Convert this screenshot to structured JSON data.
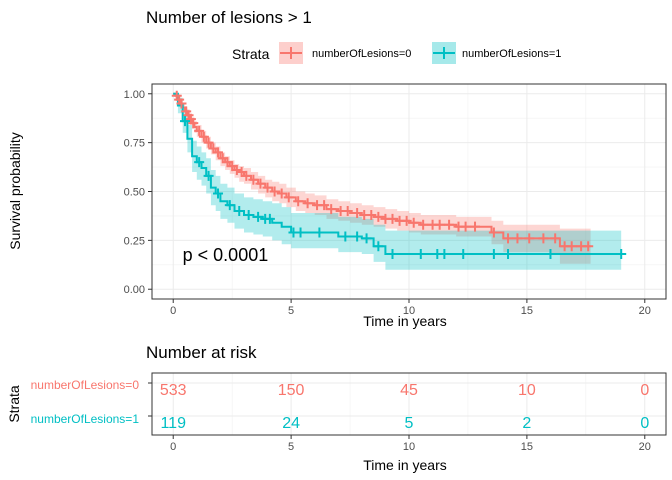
{
  "chart_data": [
    {
      "type": "line",
      "subtype": "kaplan-meier",
      "title": "Number of lesions > 1",
      "xlabel": "Time in years",
      "ylabel": "Survival probability",
      "xlim": [
        -0.9,
        20.9
      ],
      "ylim": [
        -0.05,
        1.05
      ],
      "x_ticks": [
        0,
        5,
        10,
        15,
        20
      ],
      "y_ticks": [
        0.0,
        0.25,
        0.5,
        0.75,
        1.0
      ],
      "y_tick_labels": [
        "0.00",
        "0.25",
        "0.50",
        "0.75",
        "1.00"
      ],
      "grid": true,
      "legend": {
        "title": "Strata",
        "placement": "top"
      },
      "annotation": "p < 0.0001",
      "annotation_pos": {
        "x": 0.4,
        "y": 0.175
      },
      "series": [
        {
          "name": "numberOfLesions=0",
          "color": "#F8766D",
          "band_color": "#F8766D",
          "x": [
            0,
            0.1,
            0.2,
            0.3,
            0.4,
            0.5,
            0.6,
            0.7,
            0.8,
            0.9,
            1.0,
            1.2,
            1.4,
            1.6,
            1.8,
            2.0,
            2.2,
            2.4,
            2.6,
            2.8,
            3.0,
            3.3,
            3.6,
            3.9,
            4.2,
            4.5,
            4.8,
            5.2,
            5.6,
            6.0,
            6.5,
            7.0,
            7.5,
            8.0,
            8.5,
            9.0,
            9.5,
            10.0,
            10.5,
            11.0,
            11.5,
            12.0,
            12.5,
            13.0,
            13.5,
            14.0,
            14.5,
            15.0,
            15.5,
            16.0,
            16.4,
            16.8,
            17.2,
            17.7
          ],
          "y": [
            1.0,
            0.99,
            0.97,
            0.95,
            0.93,
            0.91,
            0.89,
            0.87,
            0.85,
            0.83,
            0.81,
            0.78,
            0.75,
            0.72,
            0.7,
            0.67,
            0.65,
            0.63,
            0.61,
            0.6,
            0.58,
            0.56,
            0.54,
            0.52,
            0.5,
            0.49,
            0.47,
            0.45,
            0.44,
            0.43,
            0.41,
            0.4,
            0.39,
            0.38,
            0.37,
            0.36,
            0.35,
            0.34,
            0.33,
            0.33,
            0.33,
            0.32,
            0.32,
            0.32,
            0.29,
            0.26,
            0.26,
            0.26,
            0.26,
            0.26,
            0.22,
            0.22,
            0.22,
            0.22
          ],
          "lower": [
            1.0,
            0.98,
            0.96,
            0.93,
            0.91,
            0.89,
            0.86,
            0.84,
            0.82,
            0.8,
            0.78,
            0.75,
            0.72,
            0.69,
            0.66,
            0.63,
            0.61,
            0.59,
            0.57,
            0.55,
            0.54,
            0.51,
            0.49,
            0.47,
            0.45,
            0.44,
            0.42,
            0.4,
            0.39,
            0.38,
            0.36,
            0.35,
            0.34,
            0.33,
            0.32,
            0.31,
            0.3,
            0.29,
            0.28,
            0.28,
            0.28,
            0.27,
            0.27,
            0.27,
            0.23,
            0.19,
            0.19,
            0.19,
            0.19,
            0.18,
            0.13,
            0.13,
            0.13,
            0.13
          ],
          "upper": [
            1.0,
            1.0,
            0.99,
            0.97,
            0.95,
            0.93,
            0.92,
            0.9,
            0.88,
            0.86,
            0.84,
            0.81,
            0.78,
            0.75,
            0.73,
            0.7,
            0.68,
            0.66,
            0.64,
            0.63,
            0.62,
            0.6,
            0.58,
            0.56,
            0.55,
            0.54,
            0.52,
            0.5,
            0.49,
            0.48,
            0.46,
            0.45,
            0.44,
            0.43,
            0.42,
            0.41,
            0.4,
            0.39,
            0.38,
            0.38,
            0.38,
            0.37,
            0.37,
            0.37,
            0.35,
            0.33,
            0.33,
            0.33,
            0.33,
            0.33,
            0.31,
            0.31,
            0.31,
            0.31
          ],
          "censor_x": [
            0.15,
            0.25,
            0.35,
            0.55,
            0.65,
            0.75,
            0.85,
            1.1,
            1.3,
            1.5,
            1.7,
            1.9,
            2.1,
            2.3,
            2.5,
            2.7,
            2.9,
            3.1,
            3.4,
            3.7,
            4.0,
            4.3,
            4.6,
            4.9,
            5.3,
            5.7,
            6.1,
            6.4,
            6.7,
            7.1,
            7.4,
            7.8,
            8.1,
            8.4,
            8.7,
            9.0,
            9.3,
            9.6,
            9.9,
            10.2,
            10.6,
            11.0,
            11.3,
            11.7,
            12.1,
            12.4,
            12.8,
            13.6,
            14.2,
            14.6,
            15.1,
            15.7,
            16.2,
            16.6,
            16.9,
            17.3,
            17.6
          ],
          "at_risk": [
            533,
            150,
            45,
            10,
            0
          ]
        },
        {
          "name": "numberOfLesions=1",
          "color": "#00BFC4",
          "band_color": "#00BFC4",
          "x": [
            0,
            0.2,
            0.4,
            0.6,
            0.8,
            1.0,
            1.2,
            1.4,
            1.6,
            1.8,
            2.0,
            2.3,
            2.6,
            3.0,
            3.4,
            3.8,
            4.2,
            4.6,
            5.0,
            5.5,
            6.0,
            6.5,
            7.0,
            7.5,
            8.0,
            8.5,
            9.0,
            9.5,
            10.0,
            11.0,
            12.0,
            13.0,
            14.0,
            15.0,
            16.0,
            17.0,
            18.0,
            19.0
          ],
          "y": [
            1.0,
            0.94,
            0.86,
            0.77,
            0.68,
            0.65,
            0.62,
            0.58,
            0.52,
            0.49,
            0.45,
            0.43,
            0.4,
            0.38,
            0.37,
            0.36,
            0.34,
            0.32,
            0.29,
            0.29,
            0.29,
            0.29,
            0.27,
            0.27,
            0.26,
            0.22,
            0.18,
            0.18,
            0.18,
            0.18,
            0.18,
            0.18,
            0.18,
            0.18,
            0.18,
            0.18,
            0.18,
            0.18
          ],
          "lower": [
            1.0,
            0.9,
            0.8,
            0.7,
            0.6,
            0.56,
            0.53,
            0.49,
            0.43,
            0.4,
            0.36,
            0.34,
            0.31,
            0.29,
            0.28,
            0.27,
            0.25,
            0.23,
            0.21,
            0.21,
            0.21,
            0.21,
            0.19,
            0.19,
            0.18,
            0.14,
            0.1,
            0.1,
            0.1,
            0.1,
            0.1,
            0.1,
            0.1,
            0.1,
            0.1,
            0.1,
            0.1,
            0.1
          ],
          "upper": [
            1.0,
            0.98,
            0.92,
            0.84,
            0.76,
            0.73,
            0.7,
            0.67,
            0.61,
            0.58,
            0.54,
            0.52,
            0.49,
            0.47,
            0.46,
            0.45,
            0.44,
            0.42,
            0.39,
            0.39,
            0.39,
            0.39,
            0.37,
            0.37,
            0.36,
            0.33,
            0.3,
            0.3,
            0.3,
            0.3,
            0.3,
            0.3,
            0.3,
            0.3,
            0.3,
            0.3,
            0.3,
            0.3
          ],
          "censor_x": [
            0.5,
            1.1,
            1.5,
            1.9,
            2.4,
            2.8,
            3.2,
            3.6,
            3.9,
            4.1,
            5.1,
            5.4,
            6.2,
            7.3,
            7.8,
            8.2,
            8.7,
            9.3,
            10.5,
            11.2,
            11.5,
            12.3,
            13.6,
            14.2,
            16.0,
            19.0
          ],
          "at_risk": [
            119,
            24,
            5,
            2,
            0
          ]
        }
      ]
    },
    {
      "type": "table",
      "title": "Number at risk",
      "xlabel": "Time in years",
      "ylabel": "Strata",
      "x_ticks": [
        0,
        5,
        10,
        15,
        20
      ],
      "rows": [
        {
          "label": "numberOfLesions=0",
          "color": "#F8766D",
          "values": [
            "533",
            "150",
            "45",
            "10",
            "0"
          ]
        },
        {
          "label": "numberOfLesions=1",
          "color": "#00BFC4",
          "values": [
            "119",
            "24",
            "5",
            "2",
            "0"
          ]
        }
      ]
    }
  ]
}
